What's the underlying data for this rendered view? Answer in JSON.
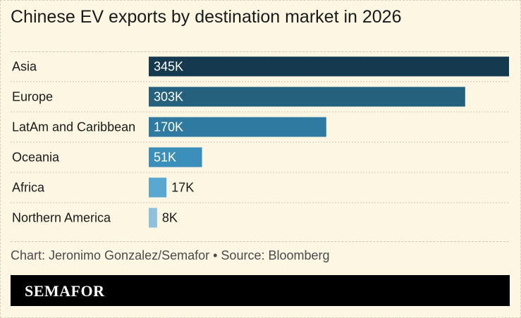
{
  "title": "Chinese EV exports by destination market in 2026",
  "source": "Chart: Jeronimo Gonzalez/Semafor • Source: Bloomberg",
  "brand": "SEMAFOR",
  "colors": {
    "background": "#fdf6e3",
    "footer": "#000000",
    "bars": [
      "#15394f",
      "#25607d",
      "#2f7aa0",
      "#3b8fbb",
      "#5aa8cf",
      "#8ec2dc"
    ]
  },
  "chart_data": {
    "type": "bar",
    "orientation": "horizontal",
    "title": "Chinese EV exports by destination market in 2026",
    "categories": [
      "Asia",
      "Europe",
      "LatAm and Caribbean",
      "Oceania",
      "Africa",
      "Northern America"
    ],
    "values": [
      345000,
      303000,
      170000,
      51000,
      17000,
      8000
    ],
    "value_labels": [
      "345K",
      "303K",
      "170K",
      "51K",
      "17K",
      "8K"
    ],
    "xlim": [
      0,
      345000
    ],
    "grid": false,
    "legend": "none"
  }
}
